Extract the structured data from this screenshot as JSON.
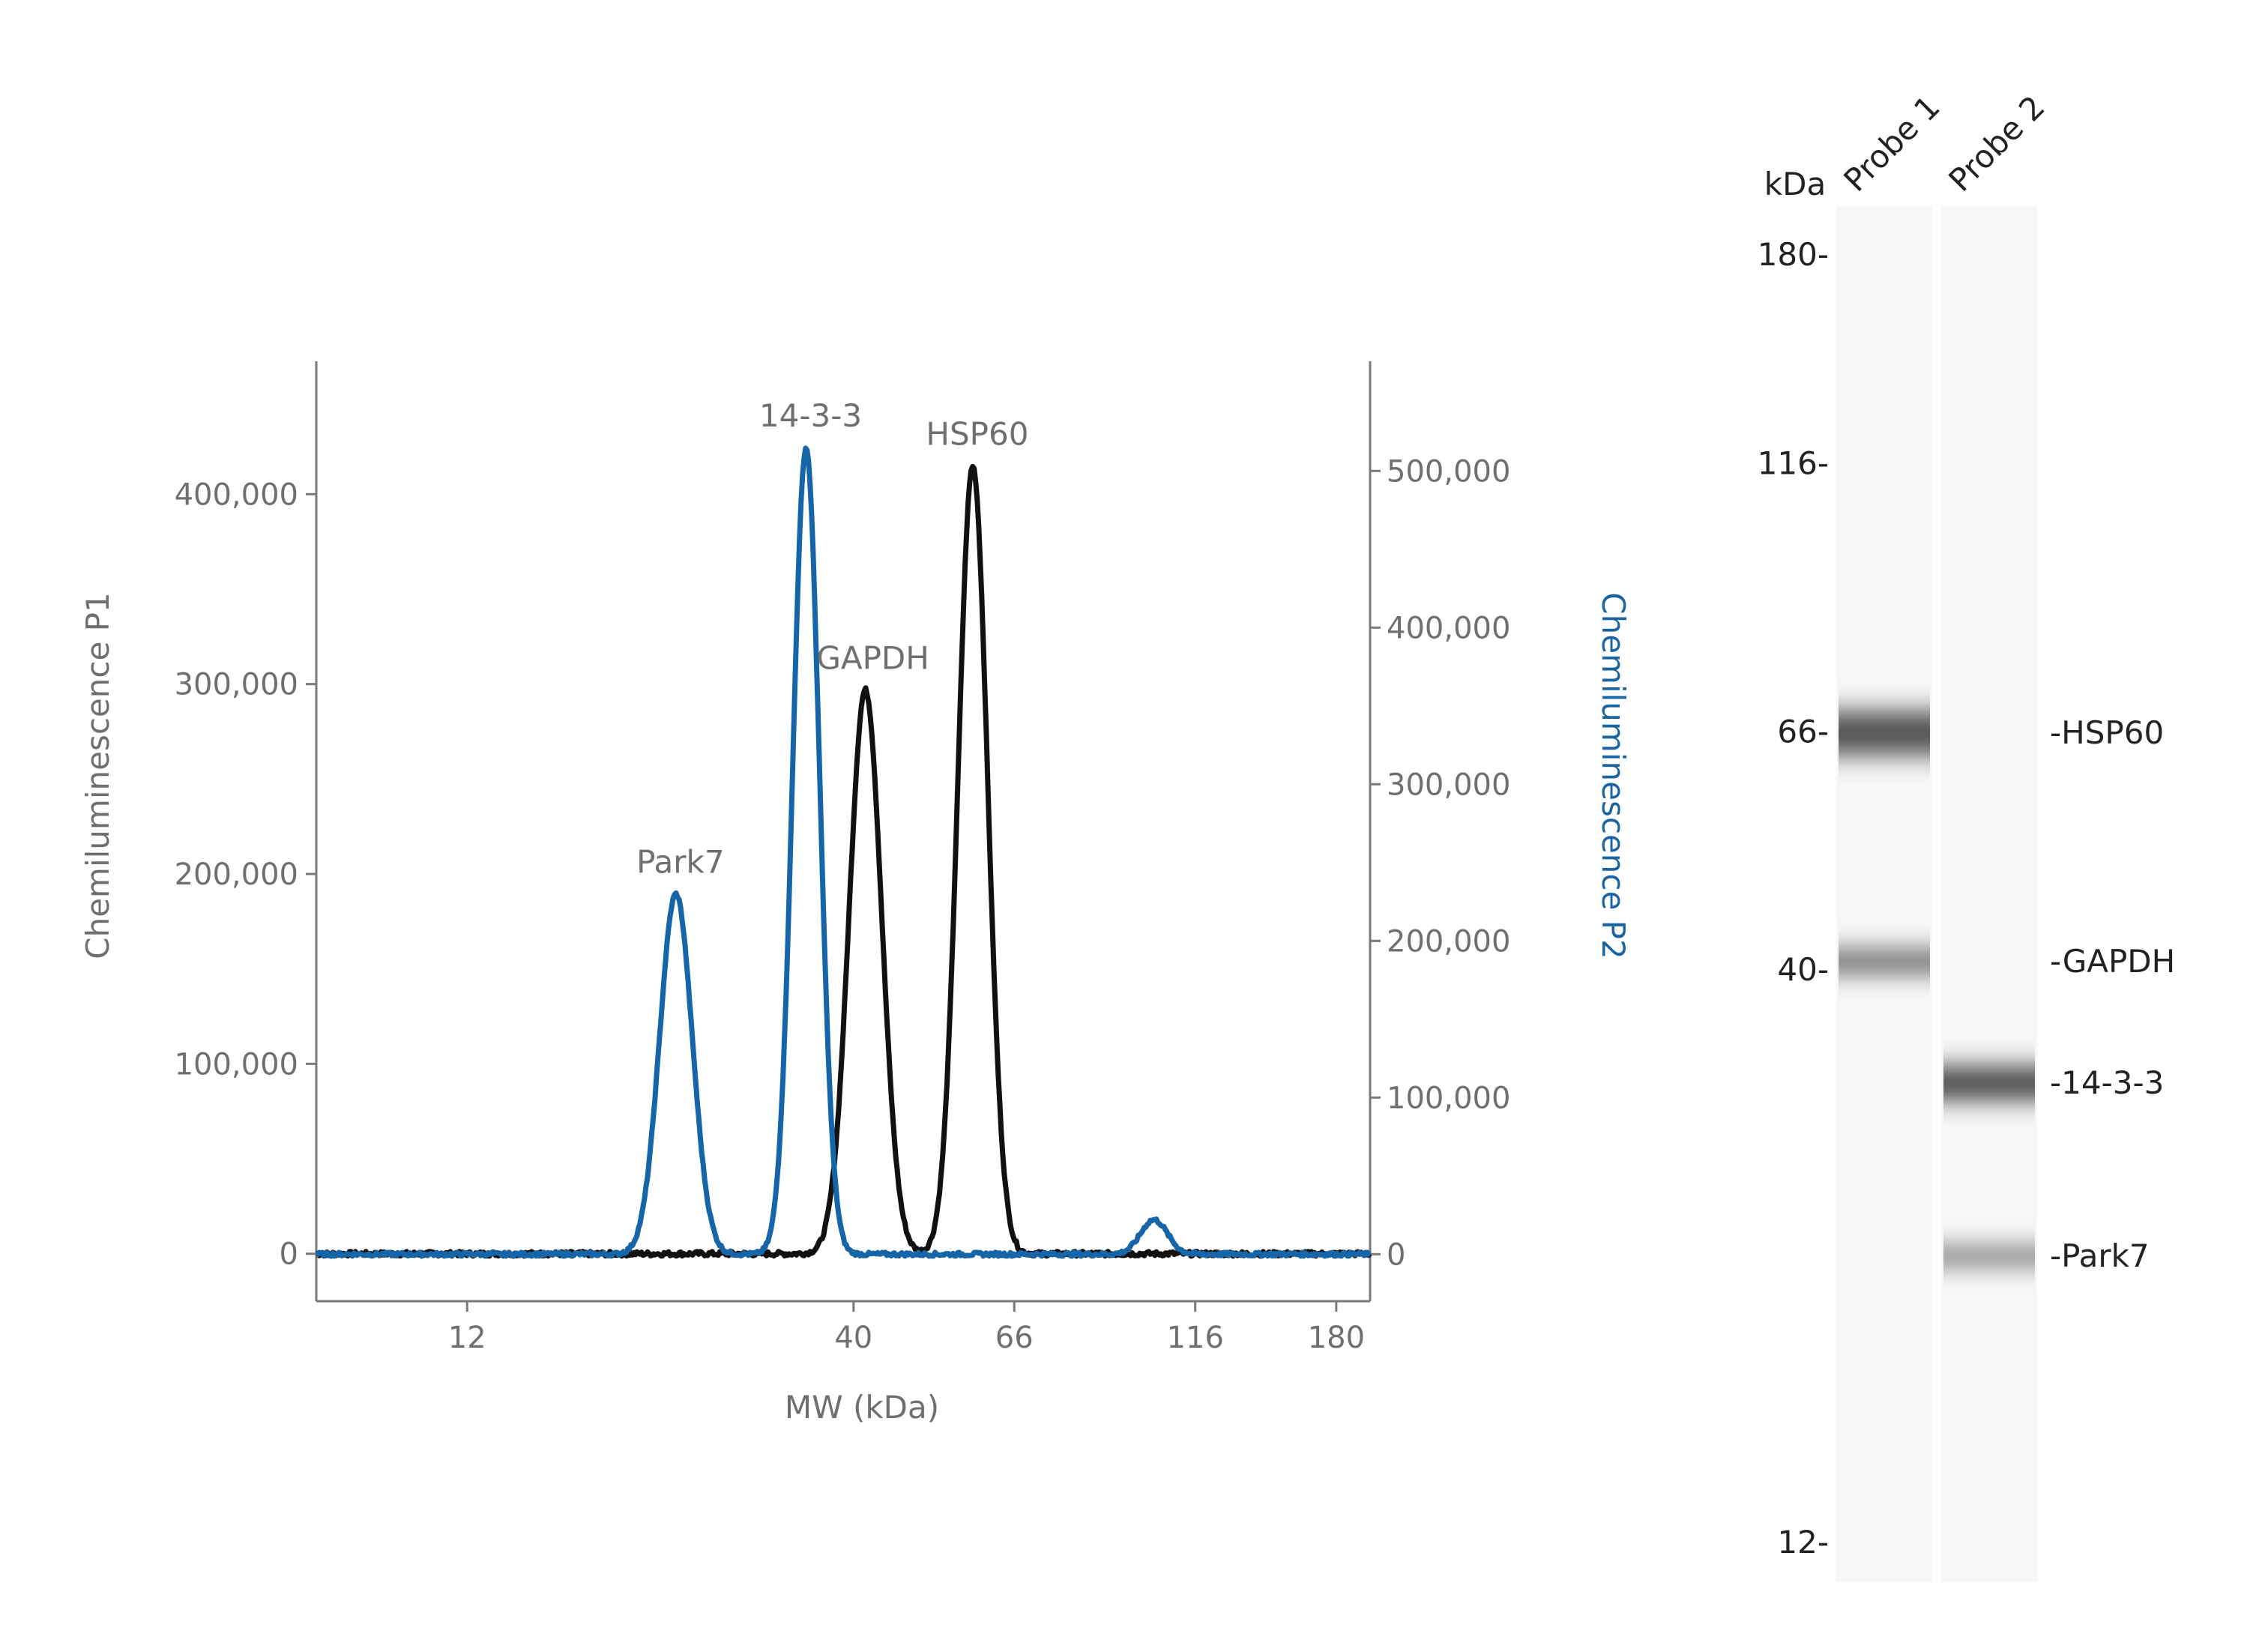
{
  "chart_data": [
    {
      "type": "line",
      "xlabel": "MW (kDa)",
      "ylabel_left": "Chemiluminescence P1",
      "ylabel_right": "Chemiluminescence P2",
      "x_scale": "log",
      "x_ticks": [
        12,
        40,
        66,
        116,
        180
      ],
      "x_tick_labels": [
        "12",
        "40",
        "66",
        "116",
        "180"
      ],
      "xlim": [
        7.5,
        200
      ],
      "y_left_ticks": [
        0,
        100000,
        200000,
        300000,
        400000
      ],
      "y_left_tick_labels": [
        "0",
        "100,000",
        "200,000",
        "300,000",
        "400,000"
      ],
      "y_left_lim": [
        -25000,
        470000
      ],
      "y_right_ticks": [
        0,
        100000,
        200000,
        300000,
        400000,
        500000
      ],
      "y_right_tick_labels": [
        "0",
        "100,000",
        "200,000",
        "300,000",
        "400,000",
        "500,000"
      ],
      "y_right_lim": [
        -30000,
        570000
      ],
      "grid": false,
      "series": [
        {
          "axis": "left",
          "color": "#111111",
          "peaks": [
            {
              "label": "GAPDH",
              "x": 41.5,
              "y": 297000,
              "width": 0.022
            },
            {
              "label": "HSP60",
              "x": 58,
              "y": 415000,
              "width": 0.02
            }
          ]
        },
        {
          "axis": "right",
          "color": "#1565a8",
          "peaks": [
            {
              "label": "Park7",
              "x": 23,
              "y": 230000,
              "width": 0.022
            },
            {
              "label": "14-3-3",
              "x": 34.5,
              "y": 515000,
              "width": 0.018
            },
            {
              "label": "",
              "x": 102,
              "y": 22000,
              "width": 0.018
            }
          ]
        }
      ]
    },
    {
      "type": "gel",
      "unit_label": "kDa",
      "lanes": [
        "Probe 1",
        "Probe 2"
      ],
      "markers": [
        {
          "label": "180-",
          "kda": 180
        },
        {
          "label": "116-",
          "kda": 116
        },
        {
          "label": "66-",
          "kda": 66
        },
        {
          "label": "40-",
          "kda": 40
        },
        {
          "label": "12-",
          "kda": 12
        }
      ],
      "bands": [
        {
          "label": "-HSP60",
          "lane": 0,
          "intensity": 0.85
        },
        {
          "label": "-GAPDH",
          "lane": 0,
          "intensity": 0.62
        },
        {
          "label": "-14-3-3",
          "lane": 1,
          "intensity": 0.88
        },
        {
          "label": "-Park7",
          "lane": 1,
          "intensity": 0.55
        }
      ]
    }
  ]
}
